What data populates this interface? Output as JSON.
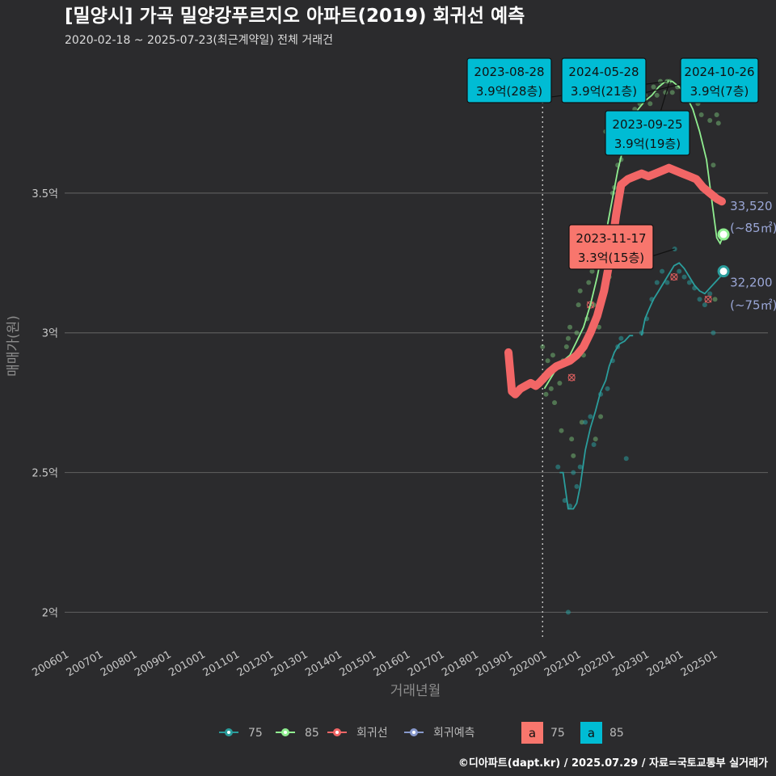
{
  "title": "[밀양시] 가곡 밀양강푸르지오 아파트(2019) 회귀선 예측",
  "subtitle": "2020-02-18 ~ 2025-07-23(최근계약일) 전체 거래건",
  "credit": "©디아파트(dapt.kr) / 2025.07.29 / 자료=국토교통부 실거래가",
  "colors": {
    "background": "#2b2b2d",
    "grid": "#5a5a5a",
    "s75": "#2a9d9c",
    "s85": "#90ee90",
    "regression": "#f26666",
    "forecast": "#8899cc",
    "label75": "#f8766d",
    "label85": "#00bcd4"
  },
  "chart_data": {
    "type": "line",
    "xlabel": "거래년월",
    "ylabel": "매매가(원)",
    "ylim": [
      1.9,
      4.0
    ],
    "xlim": [
      2006.0,
      2026.6
    ],
    "y_ticks": [
      {
        "value": 2.0,
        "label": "2억"
      },
      {
        "value": 2.5,
        "label": "2.5억"
      },
      {
        "value": 3.0,
        "label": "3억"
      },
      {
        "value": 3.5,
        "label": "3.5억"
      }
    ],
    "x_ticks": [
      {
        "value": 2006.0,
        "label": "200601"
      },
      {
        "value": 2007.0,
        "label": "200701"
      },
      {
        "value": 2008.0,
        "label": "200801"
      },
      {
        "value": 2009.0,
        "label": "200901"
      },
      {
        "value": 2010.0,
        "label": "201001"
      },
      {
        "value": 2011.0,
        "label": "201101"
      },
      {
        "value": 2012.0,
        "label": "201201"
      },
      {
        "value": 2013.0,
        "label": "201301"
      },
      {
        "value": 2014.0,
        "label": "201401"
      },
      {
        "value": 2015.0,
        "label": "201501"
      },
      {
        "value": 2016.0,
        "label": "201601"
      },
      {
        "value": 2017.0,
        "label": "201701"
      },
      {
        "value": 2018.0,
        "label": "201801"
      },
      {
        "value": 2019.0,
        "label": "201901"
      },
      {
        "value": 2020.0,
        "label": "202001"
      },
      {
        "value": 2021.0,
        "label": "202101"
      },
      {
        "value": 2022.0,
        "label": "202201"
      },
      {
        "value": 2023.0,
        "label": "202301"
      },
      {
        "value": 2024.0,
        "label": "202401"
      },
      {
        "value": 2025.0,
        "label": "202501"
      }
    ],
    "reference_x": 2020.0,
    "series": [
      {
        "name": "75",
        "points": [
          [
            2020.5,
            2.5
          ],
          [
            2020.6,
            2.5
          ],
          [
            2020.75,
            2.37
          ],
          [
            2020.9,
            2.37
          ],
          [
            2021.0,
            2.39
          ],
          [
            2021.1,
            2.45
          ],
          [
            2021.25,
            2.58
          ],
          [
            2021.4,
            2.66
          ],
          [
            2021.55,
            2.72
          ],
          [
            2021.7,
            2.79
          ],
          [
            2021.85,
            2.83
          ],
          [
            2021.95,
            2.88
          ],
          [
            2022.1,
            2.93
          ],
          [
            2022.25,
            2.96
          ],
          [
            2022.4,
            2.97
          ],
          [
            2022.55,
            2.99
          ],
          [
            2022.65,
            2.99
          ]
        ]
      },
      {
        "name": "75",
        "points": [
          [
            2022.9,
            2.99
          ],
          [
            2023.0,
            3.05
          ],
          [
            2023.1,
            3.08
          ],
          [
            2023.25,
            3.12
          ],
          [
            2023.4,
            3.15
          ],
          [
            2023.55,
            3.18
          ],
          [
            2023.7,
            3.21
          ],
          [
            2023.85,
            3.24
          ],
          [
            2024.0,
            3.25
          ],
          [
            2024.15,
            3.23
          ],
          [
            2024.3,
            3.2
          ],
          [
            2024.45,
            3.17
          ],
          [
            2024.6,
            3.15
          ],
          [
            2024.75,
            3.14
          ],
          [
            2024.9,
            3.16
          ],
          [
            2025.05,
            3.18
          ],
          [
            2025.2,
            3.2
          ],
          [
            2025.3,
            3.22
          ]
        ]
      },
      {
        "name": "85",
        "points": [
          [
            2020.05,
            2.8
          ],
          [
            2020.2,
            2.83
          ],
          [
            2020.4,
            2.87
          ],
          [
            2020.6,
            2.9
          ],
          [
            2020.8,
            2.92
          ],
          [
            2021.0,
            2.97
          ],
          [
            2021.2,
            3.02
          ],
          [
            2021.4,
            3.1
          ],
          [
            2021.6,
            3.2
          ],
          [
            2021.8,
            3.32
          ],
          [
            2022.0,
            3.45
          ],
          [
            2022.2,
            3.58
          ],
          [
            2022.4,
            3.68
          ],
          [
            2022.6,
            3.75
          ],
          [
            2022.8,
            3.8
          ],
          [
            2023.0,
            3.83
          ],
          [
            2023.2,
            3.85
          ],
          [
            2023.4,
            3.88
          ],
          [
            2023.6,
            3.9
          ],
          [
            2023.8,
            3.9
          ],
          [
            2024.0,
            3.88
          ],
          [
            2024.2,
            3.85
          ],
          [
            2024.4,
            3.8
          ],
          [
            2024.6,
            3.72
          ],
          [
            2024.8,
            3.62
          ],
          [
            2024.95,
            3.48
          ],
          [
            2025.1,
            3.34
          ],
          [
            2025.2,
            3.32
          ],
          [
            2025.3,
            3.35
          ]
        ]
      }
    ],
    "regression": [
      [
        2019.0,
        2.93
      ],
      [
        2019.1,
        2.79
      ],
      [
        2019.2,
        2.78
      ],
      [
        2019.35,
        2.8
      ],
      [
        2019.5,
        2.81
      ],
      [
        2019.65,
        2.82
      ],
      [
        2019.8,
        2.81
      ],
      [
        2019.9,
        2.82
      ],
      [
        2020.05,
        2.84
      ],
      [
        2020.2,
        2.86
      ],
      [
        2020.4,
        2.88
      ],
      [
        2020.6,
        2.89
      ],
      [
        2020.8,
        2.9
      ],
      [
        2021.0,
        2.92
      ],
      [
        2021.2,
        2.95
      ],
      [
        2021.4,
        3.0
      ],
      [
        2021.6,
        3.06
      ],
      [
        2021.8,
        3.15
      ],
      [
        2022.0,
        3.28
      ],
      [
        2022.15,
        3.42
      ],
      [
        2022.3,
        3.53
      ],
      [
        2022.5,
        3.55
      ],
      [
        2022.7,
        3.56
      ],
      [
        2022.9,
        3.57
      ],
      [
        2023.1,
        3.56
      ],
      [
        2023.3,
        3.57
      ],
      [
        2023.5,
        3.58
      ],
      [
        2023.7,
        3.59
      ],
      [
        2023.9,
        3.58
      ],
      [
        2024.1,
        3.57
      ],
      [
        2024.3,
        3.56
      ],
      [
        2024.5,
        3.55
      ],
      [
        2024.7,
        3.52
      ],
      [
        2024.9,
        3.5
      ],
      [
        2025.1,
        3.48
      ],
      [
        2025.25,
        3.47
      ]
    ],
    "forecast_points": [
      {
        "x": 2025.3,
        "y": 3.352,
        "series": "85",
        "value_label": "33,520",
        "area_label": "(~85㎡)"
      },
      {
        "x": 2025.3,
        "y": 3.22,
        "series": "75",
        "value_label": "32,200",
        "area_label": "(~75㎡)"
      }
    ],
    "annotations": [
      {
        "series": "85",
        "date": "2023-08-28",
        "price": "3.9억(28층)",
        "x": 2023.65,
        "y": 3.9
      },
      {
        "series": "85",
        "date": "2024-05-28",
        "price": "3.9억(21층)",
        "x": 2024.4,
        "y": 3.9
      },
      {
        "series": "85",
        "date": "2024-10-26",
        "price": "3.9억(7층)",
        "x": 2024.8,
        "y": 3.9
      },
      {
        "series": "85",
        "date": "2023-09-25",
        "price": "3.9억(19층)",
        "x": 2023.72,
        "y": 3.9
      },
      {
        "series": "75",
        "date": "2023-11-17",
        "price": "3.3억(15층)",
        "x": 2023.87,
        "y": 3.3
      }
    ],
    "scatter85": [
      [
        2020.0,
        2.95
      ],
      [
        2020.05,
        2.83
      ],
      [
        2020.1,
        2.78
      ],
      [
        2020.15,
        2.9
      ],
      [
        2020.2,
        2.85
      ],
      [
        2020.25,
        2.8
      ],
      [
        2020.3,
        2.92
      ],
      [
        2020.35,
        2.75
      ],
      [
        2020.4,
        2.88
      ],
      [
        2020.5,
        2.82
      ],
      [
        2020.55,
        2.65
      ],
      [
        2020.6,
        2.9
      ],
      [
        2020.7,
        2.95
      ],
      [
        2020.75,
        2.98
      ],
      [
        2020.8,
        3.02
      ],
      [
        2020.85,
        2.62
      ],
      [
        2020.9,
        2.56
      ],
      [
        2021.0,
        3.0
      ],
      [
        2021.05,
        3.1
      ],
      [
        2021.1,
        3.15
      ],
      [
        2021.15,
        2.68
      ],
      [
        2021.2,
        2.92
      ],
      [
        2021.3,
        3.05
      ],
      [
        2021.35,
        3.18
      ],
      [
        2021.45,
        3.22
      ],
      [
        2021.5,
        3.1
      ],
      [
        2021.55,
        2.62
      ],
      [
        2021.6,
        3.25
      ],
      [
        2021.65,
        3.02
      ],
      [
        2021.7,
        2.7
      ],
      [
        2021.75,
        3.3
      ],
      [
        2021.8,
        3.28
      ],
      [
        2021.85,
        3.72
      ],
      [
        2021.9,
        3.35
      ],
      [
        2021.95,
        3.2
      ],
      [
        2022.0,
        3.38
      ],
      [
        2022.05,
        3.5
      ],
      [
        2022.1,
        3.52
      ],
      [
        2022.15,
        3.45
      ],
      [
        2022.2,
        3.6
      ],
      [
        2022.3,
        3.62
      ],
      [
        2022.35,
        3.68
      ],
      [
        2022.45,
        3.7
      ],
      [
        2022.55,
        3.75
      ],
      [
        2022.6,
        3.78
      ],
      [
        2022.7,
        3.8
      ],
      [
        2022.75,
        3.72
      ],
      [
        2022.85,
        3.82
      ],
      [
        2023.0,
        3.85
      ],
      [
        2023.05,
        3.78
      ],
      [
        2023.15,
        3.82
      ],
      [
        2023.25,
        3.88
      ],
      [
        2023.35,
        3.85
      ],
      [
        2023.45,
        3.9
      ],
      [
        2023.6,
        3.86
      ],
      [
        2023.65,
        3.9
      ],
      [
        2023.72,
        3.9
      ],
      [
        2023.8,
        3.86
      ],
      [
        2023.95,
        3.88
      ],
      [
        2024.1,
        3.85
      ],
      [
        2024.25,
        3.86
      ],
      [
        2024.4,
        3.9
      ],
      [
        2024.55,
        3.82
      ],
      [
        2024.65,
        3.78
      ],
      [
        2024.8,
        3.9
      ],
      [
        2024.9,
        3.76
      ],
      [
        2025.0,
        3.6
      ],
      [
        2025.05,
        3.12
      ],
      [
        2025.1,
        3.78
      ],
      [
        2025.15,
        3.75
      ]
    ],
    "scatter75": [
      [
        2020.45,
        2.52
      ],
      [
        2020.65,
        2.4
      ],
      [
        2020.8,
        2.38
      ],
      [
        2020.9,
        2.5
      ],
      [
        2021.0,
        2.45
      ],
      [
        2021.1,
        2.52
      ],
      [
        2021.25,
        2.68
      ],
      [
        2021.4,
        2.7
      ],
      [
        2021.5,
        2.6
      ],
      [
        2021.7,
        2.78
      ],
      [
        2021.9,
        2.8
      ],
      [
        2022.05,
        2.9
      ],
      [
        2022.2,
        2.95
      ],
      [
        2022.3,
        2.98
      ],
      [
        2022.45,
        2.55
      ],
      [
        2022.9,
        3.0
      ],
      [
        2023.05,
        3.05
      ],
      [
        2023.2,
        3.12
      ],
      [
        2023.35,
        3.18
      ],
      [
        2023.5,
        3.22
      ],
      [
        2023.65,
        3.18
      ],
      [
        2023.87,
        3.3
      ],
      [
        2024.0,
        3.22
      ],
      [
        2024.15,
        3.2
      ],
      [
        2024.3,
        3.18
      ],
      [
        2024.45,
        3.16
      ],
      [
        2024.6,
        3.12
      ],
      [
        2024.75,
        3.1
      ],
      [
        2024.9,
        3.14
      ],
      [
        2025.0,
        3.0
      ],
      [
        2020.75,
        2.0
      ]
    ],
    "crossed_points": [
      [
        2020.85,
        2.84
      ],
      [
        2021.4,
        3.1
      ],
      [
        2023.85,
        3.2
      ],
      [
        2024.85,
        3.12
      ]
    ]
  },
  "legend": {
    "items": [
      {
        "key": "75",
        "label": "75",
        "color_key": "s75"
      },
      {
        "key": "85",
        "label": "85",
        "color_key": "s85"
      },
      {
        "key": "regression",
        "label": "회귀선",
        "color_key": "regression"
      },
      {
        "key": "forecast",
        "label": "회귀예측",
        "color_key": "forecast"
      }
    ],
    "label_items": [
      {
        "glyph": "a",
        "label": "75",
        "color_key": "label75"
      },
      {
        "glyph": "a",
        "label": "85",
        "color_key": "label85"
      }
    ]
  }
}
